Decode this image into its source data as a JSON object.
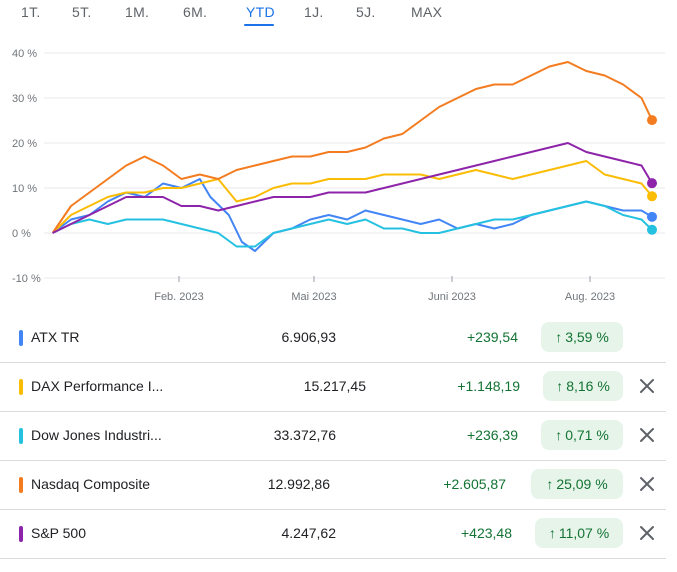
{
  "tabs": [
    "1T.",
    "5T.",
    "1M.",
    "6M.",
    "YTD",
    "1J.",
    "5J.",
    "MAX"
  ],
  "active_tab": "YTD",
  "chart_data": {
    "type": "line",
    "y_ticks": [
      "40 %",
      "30 %",
      "20 %",
      "10 %",
      "0 %",
      "-10 %"
    ],
    "ylim": [
      -10,
      40
    ],
    "x_ticks": [
      "Feb. 2023",
      "Mai 2023",
      "Juni 2023",
      "Aug. 2023"
    ],
    "x_range": [
      "2023-01-01",
      "2023-08-18"
    ],
    "grid": "horizontal",
    "series": [
      {
        "name": "ATX TR",
        "color": "#4285f4",
        "points": [
          [
            "2023-01-02",
            0
          ],
          [
            "2023-01-09",
            3
          ],
          [
            "2023-01-16",
            4
          ],
          [
            "2023-01-23",
            7
          ],
          [
            "2023-01-30",
            9
          ],
          [
            "2023-02-06",
            8
          ],
          [
            "2023-02-13",
            11
          ],
          [
            "2023-02-20",
            10
          ],
          [
            "2023-02-27",
            12
          ],
          [
            "2023-03-03",
            8
          ],
          [
            "2023-03-10",
            4
          ],
          [
            "2023-03-15",
            -2
          ],
          [
            "2023-03-20",
            -4
          ],
          [
            "2023-03-27",
            0
          ],
          [
            "2023-04-03",
            1
          ],
          [
            "2023-04-10",
            3
          ],
          [
            "2023-04-17",
            4
          ],
          [
            "2023-04-24",
            3
          ],
          [
            "2023-05-01",
            5
          ],
          [
            "2023-05-08",
            4
          ],
          [
            "2023-05-15",
            3
          ],
          [
            "2023-05-22",
            2
          ],
          [
            "2023-05-29",
            3
          ],
          [
            "2023-06-05",
            1
          ],
          [
            "2023-06-12",
            2
          ],
          [
            "2023-06-19",
            1
          ],
          [
            "2023-06-26",
            2
          ],
          [
            "2023-07-03",
            4
          ],
          [
            "2023-07-10",
            5
          ],
          [
            "2023-07-17",
            6
          ],
          [
            "2023-07-24",
            7
          ],
          [
            "2023-07-31",
            6
          ],
          [
            "2023-08-07",
            5
          ],
          [
            "2023-08-14",
            5
          ],
          [
            "2023-08-18",
            3.59
          ]
        ],
        "end_value": 3.59
      },
      {
        "name": "DAX Performance I...",
        "color": "#fbbc04",
        "points": [
          [
            "2023-01-02",
            0
          ],
          [
            "2023-01-09",
            4
          ],
          [
            "2023-01-16",
            6
          ],
          [
            "2023-01-23",
            8
          ],
          [
            "2023-01-30",
            9
          ],
          [
            "2023-02-06",
            9
          ],
          [
            "2023-02-13",
            10
          ],
          [
            "2023-02-20",
            10
          ],
          [
            "2023-02-27",
            11
          ],
          [
            "2023-03-06",
            12
          ],
          [
            "2023-03-13",
            7
          ],
          [
            "2023-03-20",
            8
          ],
          [
            "2023-03-27",
            10
          ],
          [
            "2023-04-03",
            11
          ],
          [
            "2023-04-10",
            11
          ],
          [
            "2023-04-17",
            12
          ],
          [
            "2023-04-24",
            12
          ],
          [
            "2023-05-01",
            12
          ],
          [
            "2023-05-08",
            13
          ],
          [
            "2023-05-15",
            13
          ],
          [
            "2023-05-22",
            13
          ],
          [
            "2023-05-29",
            12
          ],
          [
            "2023-06-05",
            13
          ],
          [
            "2023-06-12",
            14
          ],
          [
            "2023-06-19",
            13
          ],
          [
            "2023-06-26",
            12
          ],
          [
            "2023-07-03",
            13
          ],
          [
            "2023-07-10",
            14
          ],
          [
            "2023-07-17",
            15
          ],
          [
            "2023-07-24",
            16
          ],
          [
            "2023-07-31",
            13
          ],
          [
            "2023-08-07",
            12
          ],
          [
            "2023-08-14",
            11
          ],
          [
            "2023-08-18",
            8.16
          ]
        ],
        "end_value": 8.16
      },
      {
        "name": "Dow Jones Industri...",
        "color": "#24c1e0",
        "points": [
          [
            "2023-01-02",
            0
          ],
          [
            "2023-01-09",
            2
          ],
          [
            "2023-01-16",
            3
          ],
          [
            "2023-01-23",
            2
          ],
          [
            "2023-01-30",
            3
          ],
          [
            "2023-02-06",
            3
          ],
          [
            "2023-02-13",
            3
          ],
          [
            "2023-02-20",
            2
          ],
          [
            "2023-02-27",
            1
          ],
          [
            "2023-03-06",
            0
          ],
          [
            "2023-03-13",
            -3
          ],
          [
            "2023-03-20",
            -3
          ],
          [
            "2023-03-27",
            0
          ],
          [
            "2023-04-03",
            1
          ],
          [
            "2023-04-10",
            2
          ],
          [
            "2023-04-17",
            3
          ],
          [
            "2023-04-24",
            2
          ],
          [
            "2023-05-01",
            3
          ],
          [
            "2023-05-08",
            1
          ],
          [
            "2023-05-15",
            1
          ],
          [
            "2023-05-22",
            0
          ],
          [
            "2023-05-29",
            0
          ],
          [
            "2023-06-05",
            1
          ],
          [
            "2023-06-12",
            2
          ],
          [
            "2023-06-19",
            3
          ],
          [
            "2023-06-26",
            3
          ],
          [
            "2023-07-03",
            4
          ],
          [
            "2023-07-10",
            5
          ],
          [
            "2023-07-17",
            6
          ],
          [
            "2023-07-24",
            7
          ],
          [
            "2023-07-31",
            6
          ],
          [
            "2023-08-07",
            4
          ],
          [
            "2023-08-14",
            3
          ],
          [
            "2023-08-18",
            0.71
          ]
        ],
        "end_value": 0.71
      },
      {
        "name": "Nasdaq Composite",
        "color": "#f47c20",
        "points": [
          [
            "2023-01-02",
            0
          ],
          [
            "2023-01-09",
            6
          ],
          [
            "2023-01-16",
            9
          ],
          [
            "2023-01-23",
            12
          ],
          [
            "2023-01-30",
            15
          ],
          [
            "2023-02-06",
            17
          ],
          [
            "2023-02-13",
            15
          ],
          [
            "2023-02-20",
            12
          ],
          [
            "2023-02-27",
            13
          ],
          [
            "2023-03-06",
            12
          ],
          [
            "2023-03-13",
            14
          ],
          [
            "2023-03-20",
            15
          ],
          [
            "2023-03-27",
            16
          ],
          [
            "2023-04-03",
            17
          ],
          [
            "2023-04-10",
            17
          ],
          [
            "2023-04-17",
            18
          ],
          [
            "2023-04-24",
            18
          ],
          [
            "2023-05-01",
            19
          ],
          [
            "2023-05-08",
            21
          ],
          [
            "2023-05-15",
            22
          ],
          [
            "2023-05-22",
            25
          ],
          [
            "2023-05-29",
            28
          ],
          [
            "2023-06-05",
            30
          ],
          [
            "2023-06-12",
            32
          ],
          [
            "2023-06-19",
            33
          ],
          [
            "2023-06-26",
            33
          ],
          [
            "2023-07-03",
            35
          ],
          [
            "2023-07-10",
            37
          ],
          [
            "2023-07-17",
            38
          ],
          [
            "2023-07-24",
            36
          ],
          [
            "2023-07-31",
            35
          ],
          [
            "2023-08-07",
            33
          ],
          [
            "2023-08-14",
            30
          ],
          [
            "2023-08-18",
            25.09
          ]
        ],
        "end_value": 25.09
      },
      {
        "name": "S&P 500",
        "color": "#8e24aa",
        "points": [
          [
            "2023-01-02",
            0
          ],
          [
            "2023-01-09",
            2
          ],
          [
            "2023-01-16",
            4
          ],
          [
            "2023-01-23",
            6
          ],
          [
            "2023-01-30",
            8
          ],
          [
            "2023-02-06",
            8
          ],
          [
            "2023-02-13",
            8
          ],
          [
            "2023-02-20",
            6
          ],
          [
            "2023-02-27",
            6
          ],
          [
            "2023-03-06",
            5
          ],
          [
            "2023-03-13",
            6
          ],
          [
            "2023-03-20",
            7
          ],
          [
            "2023-03-27",
            8
          ],
          [
            "2023-04-03",
            8
          ],
          [
            "2023-04-10",
            8
          ],
          [
            "2023-04-17",
            9
          ],
          [
            "2023-04-24",
            9
          ],
          [
            "2023-05-01",
            9
          ],
          [
            "2023-05-08",
            10
          ],
          [
            "2023-05-15",
            11
          ],
          [
            "2023-05-22",
            12
          ],
          [
            "2023-05-29",
            13
          ],
          [
            "2023-06-05",
            14
          ],
          [
            "2023-06-12",
            15
          ],
          [
            "2023-06-19",
            16
          ],
          [
            "2023-06-26",
            17
          ],
          [
            "2023-07-03",
            18
          ],
          [
            "2023-07-10",
            19
          ],
          [
            "2023-07-17",
            20
          ],
          [
            "2023-07-24",
            18
          ],
          [
            "2023-07-31",
            17
          ],
          [
            "2023-08-07",
            16
          ],
          [
            "2023-08-14",
            15
          ],
          [
            "2023-08-18",
            11.07
          ]
        ],
        "end_value": 11.07
      }
    ]
  },
  "rows": [
    {
      "name": "ATX TR",
      "color": "#4285f4",
      "price": "6.906,93",
      "change": "+239,54",
      "pct": "3,59 %",
      "removable": false
    },
    {
      "name": "DAX Performance I...",
      "color": "#fbbc04",
      "price": "15.217,45",
      "change": "+1.148,19",
      "pct": "8,16 %",
      "removable": true
    },
    {
      "name": "Dow Jones Industri...",
      "color": "#24c1e0",
      "price": "33.372,76",
      "change": "+236,39",
      "pct": "0,71 %",
      "removable": true
    },
    {
      "name": "Nasdaq Composite",
      "color": "#f47c20",
      "price": "12.992,86",
      "change": "+2.605,87",
      "pct": "25,09 %",
      "removable": true
    },
    {
      "name": "S&P 500",
      "color": "#8e24aa",
      "price": "4.247,62",
      "change": "+423,48",
      "pct": "11,07 %",
      "removable": true
    }
  ],
  "icons": {
    "up_arrow": "arrow-up-icon",
    "close": "close-icon"
  }
}
